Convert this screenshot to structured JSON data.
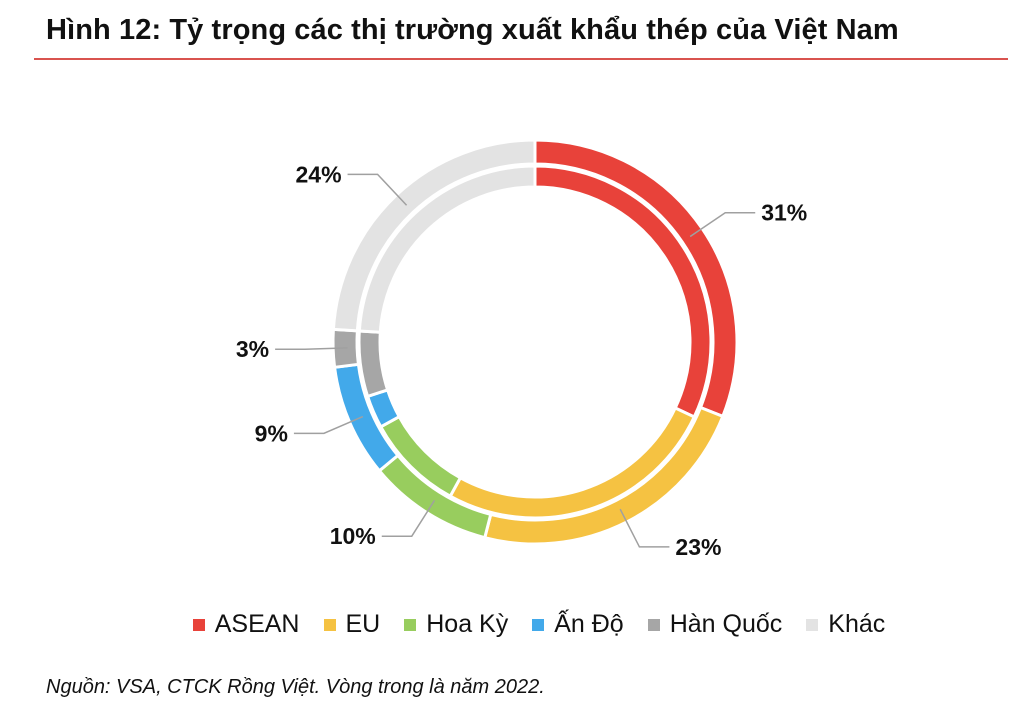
{
  "title": "Hình 12: Tỷ trọng các thị trường xuất khẩu thép của Việt Nam",
  "source": "Nguồn: VSA, CTCK Rồng Việt. Vòng trong là năm 2022.",
  "chart_data": {
    "type": "donut",
    "categories": [
      "ASEAN",
      "EU",
      "Hoa Kỳ",
      "Ấn Độ",
      "Hàn Quốc",
      "Khác"
    ],
    "colors": [
      "#e8423a",
      "#f5c242",
      "#98cd5e",
      "#42a9ea",
      "#a6a6a6",
      "#e3e3e3"
    ],
    "series": [
      {
        "ring": "outer",
        "values": [
          31,
          23,
          10,
          9,
          3,
          24
        ],
        "labels": [
          "31%",
          "23%",
          "10%",
          "9%",
          "3%",
          "24%"
        ]
      },
      {
        "ring": "inner",
        "values": [
          32,
          26,
          9,
          3,
          6,
          24
        ]
      }
    ],
    "legend_position": "bottom"
  }
}
